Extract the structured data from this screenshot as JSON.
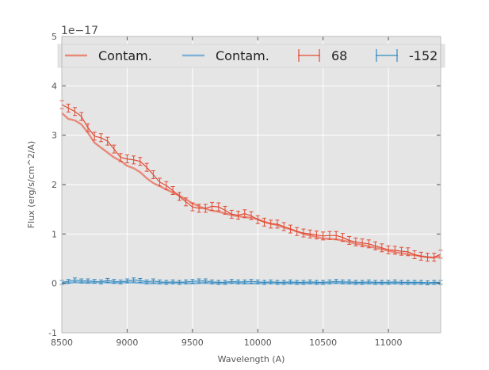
{
  "chart_data": {
    "type": "line",
    "title": "",
    "xlabel": "Wavelength (A)",
    "ylabel": "Flux (erg/s/cm^2/A)",
    "y_offset_label": "1e−17",
    "xlim": [
      8500,
      11400
    ],
    "ylim": [
      -1,
      5
    ],
    "xticks": [
      8500,
      9000,
      9500,
      10000,
      10500,
      11000
    ],
    "yticks": [
      -1,
      0,
      1,
      2,
      3,
      4,
      5
    ],
    "grid": true,
    "legend_placement": "top",
    "colors": {
      "contam_red": "#e8897a",
      "contam_blue": "#7fb2d6",
      "data_red": "#e24a33",
      "data_blue": "#348abd",
      "plot_bg": "#e5e5e5"
    },
    "legend": [
      {
        "label": "Contam.",
        "kind": "line",
        "color": "#e8897a"
      },
      {
        "label": "Contam.",
        "kind": "line",
        "color": "#7fb2d6"
      },
      {
        "label": "68",
        "kind": "errorbar",
        "color": "#e24a33"
      },
      {
        "label": "-152",
        "kind": "errorbar",
        "color": "#348abd"
      }
    ],
    "series": [
      {
        "name": "Contam.",
        "style": "line",
        "color": "#e8897a",
        "x": [
          8500,
          8550,
          8600,
          8650,
          8700,
          8750,
          8800,
          8850,
          8900,
          8950,
          9000,
          9050,
          9100,
          9150,
          9200,
          9250,
          9300,
          9350,
          9400,
          9450,
          9500,
          9550,
          9600,
          9650,
          9700,
          9750,
          9800,
          9850,
          9900,
          9950,
          10000,
          10050,
          10100,
          10150,
          10200,
          10250,
          10300,
          10350,
          10400,
          10450,
          10500,
          10550,
          10600,
          10650,
          10700,
          10750,
          10800,
          10850,
          10900,
          10950,
          11000,
          11050,
          11100,
          11150,
          11200,
          11250,
          11300,
          11350,
          11400
        ],
        "y": [
          3.45,
          3.33,
          3.3,
          3.22,
          3.05,
          2.85,
          2.75,
          2.65,
          2.55,
          2.48,
          2.38,
          2.33,
          2.25,
          2.13,
          2.03,
          1.97,
          1.9,
          1.84,
          1.78,
          1.7,
          1.62,
          1.56,
          1.51,
          1.47,
          1.45,
          1.42,
          1.38,
          1.36,
          1.34,
          1.33,
          1.3,
          1.25,
          1.21,
          1.18,
          1.13,
          1.1,
          1.05,
          1.0,
          0.97,
          0.94,
          0.91,
          0.9,
          0.89,
          0.87,
          0.84,
          0.8,
          0.78,
          0.75,
          0.72,
          0.69,
          0.66,
          0.63,
          0.61,
          0.59,
          0.57,
          0.55,
          0.53,
          0.52,
          0.55
        ]
      },
      {
        "name": "Contam.",
        "style": "line",
        "color": "#7fb2d6",
        "x": [
          8500,
          8600,
          8700,
          8800,
          8900,
          9000,
          9100,
          9200,
          9300,
          9400,
          9500,
          9600,
          9700,
          9800,
          9900,
          10000,
          10100,
          10200,
          10300,
          10400,
          10500,
          10600,
          10700,
          10800,
          10900,
          11000,
          11100,
          11200,
          11300,
          11400
        ],
        "y": [
          0.0,
          0.02,
          0.01,
          0.02,
          0.01,
          0.02,
          0.01,
          0.0,
          0.01,
          0.01,
          0.0,
          0.01,
          0.0,
          0.01,
          0.0,
          0.0,
          0.01,
          0.0,
          0.0,
          0.0,
          0.0,
          0.01,
          0.0,
          0.0,
          0.0,
          0.0,
          0.0,
          0.0,
          0.0,
          0.0
        ]
      },
      {
        "name": "68",
        "style": "errorbar",
        "color": "#e24a33",
        "err": 0.08,
        "x": [
          8500,
          8550,
          8600,
          8650,
          8700,
          8750,
          8800,
          8850,
          8900,
          8950,
          9000,
          9050,
          9100,
          9150,
          9200,
          9250,
          9300,
          9350,
          9400,
          9450,
          9500,
          9550,
          9600,
          9650,
          9700,
          9750,
          9800,
          9850,
          9900,
          9950,
          10000,
          10050,
          10100,
          10150,
          10200,
          10250,
          10300,
          10350,
          10400,
          10450,
          10500,
          10550,
          10600,
          10650,
          10700,
          10750,
          10800,
          10850,
          10900,
          10950,
          11000,
          11050,
          11100,
          11150,
          11200,
          11250,
          11300,
          11350,
          11400
        ],
        "y": [
          3.62,
          3.55,
          3.48,
          3.38,
          3.15,
          2.98,
          2.95,
          2.88,
          2.72,
          2.55,
          2.52,
          2.5,
          2.47,
          2.35,
          2.2,
          2.05,
          1.98,
          1.88,
          1.76,
          1.65,
          1.55,
          1.52,
          1.52,
          1.56,
          1.55,
          1.48,
          1.4,
          1.38,
          1.41,
          1.37,
          1.29,
          1.24,
          1.2,
          1.2,
          1.15,
          1.1,
          1.05,
          1.02,
          1.0,
          0.98,
          0.96,
          0.97,
          0.97,
          0.93,
          0.87,
          0.84,
          0.82,
          0.8,
          0.76,
          0.72,
          0.68,
          0.67,
          0.65,
          0.64,
          0.58,
          0.55,
          0.53,
          0.53,
          0.59
        ]
      },
      {
        "name": "-152",
        "style": "errorbar",
        "color": "#348abd",
        "err": 0.04,
        "x": [
          8500,
          8550,
          8600,
          8650,
          8700,
          8750,
          8800,
          8850,
          8900,
          8950,
          9000,
          9050,
          9100,
          9150,
          9200,
          9250,
          9300,
          9350,
          9400,
          9450,
          9500,
          9550,
          9600,
          9650,
          9700,
          9750,
          9800,
          9850,
          9900,
          9950,
          10000,
          10050,
          10100,
          10150,
          10200,
          10250,
          10300,
          10350,
          10400,
          10450,
          10500,
          10550,
          10600,
          10650,
          10700,
          10750,
          10800,
          10850,
          10900,
          10950,
          11000,
          11050,
          11100,
          11150,
          11200,
          11250,
          11300,
          11350,
          11400
        ],
        "y": [
          0.02,
          0.04,
          0.07,
          0.05,
          0.05,
          0.04,
          0.03,
          0.06,
          0.04,
          0.03,
          0.05,
          0.07,
          0.06,
          0.03,
          0.05,
          0.03,
          0.02,
          0.03,
          0.02,
          0.03,
          0.04,
          0.05,
          0.05,
          0.03,
          0.02,
          0.02,
          0.04,
          0.03,
          0.03,
          0.04,
          0.03,
          0.02,
          0.03,
          0.02,
          0.02,
          0.03,
          0.02,
          0.02,
          0.03,
          0.02,
          0.02,
          0.03,
          0.04,
          0.03,
          0.03,
          0.02,
          0.02,
          0.03,
          0.02,
          0.02,
          0.02,
          0.03,
          0.02,
          0.02,
          0.02,
          0.02,
          0.01,
          0.02,
          0.02
        ]
      }
    ]
  }
}
